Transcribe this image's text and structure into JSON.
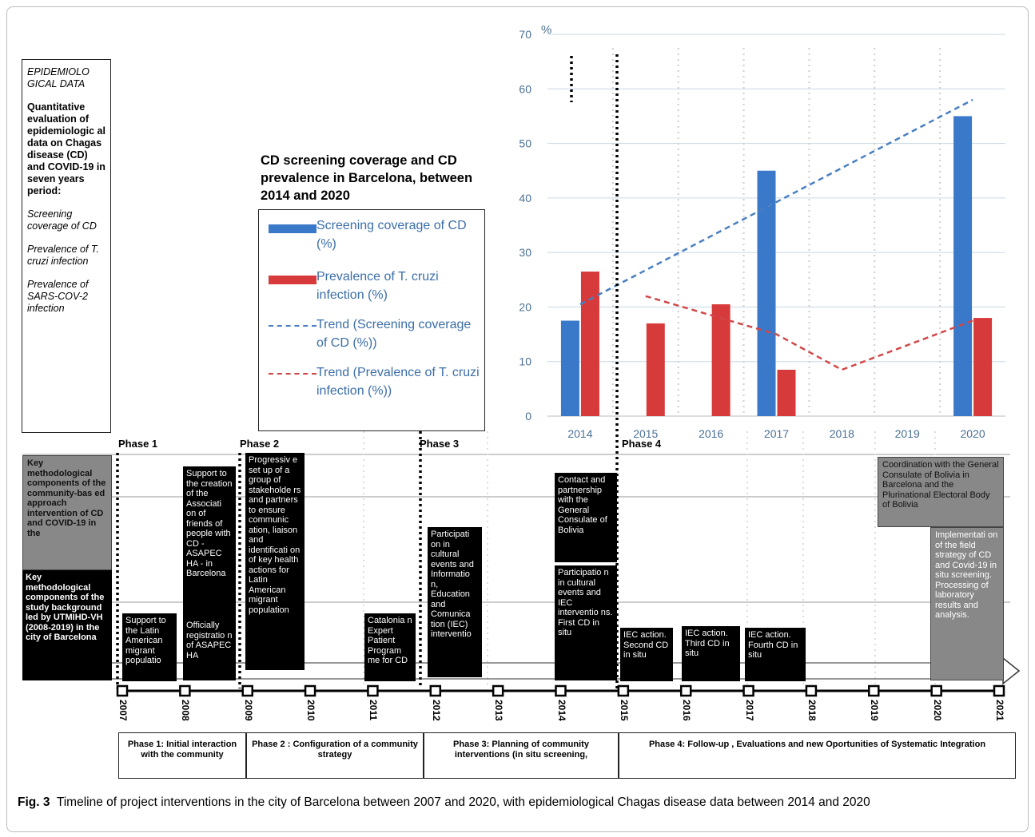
{
  "epi": {
    "header": "EPIDEMIOLO GICAL DATA",
    "bold": "Quantitative evaluation of epidemiologic al data on Chagas disease (CD) and COVID-19 in seven years period:",
    "items": [
      "Screening coverage of CD",
      "Prevalence of T. cruzi infection",
      "Prevalence of SARS-COV-2 infection"
    ]
  },
  "chart_title": "CD screening coverage and CD prevalence in Barcelona, between 2014 and 2020",
  "legend": {
    "s1": "Screening coverage of CD (%)",
    "s2": "Prevalence of T. cruzi infection (%)",
    "s3": "Trend (Screening coverage of CD (%))",
    "s4": "Trend (Prevalence of T. cruzi infection (%))"
  },
  "chart_data": {
    "type": "bar",
    "categories": [
      "2014",
      "2015",
      "2016",
      "2017",
      "2018",
      "2019",
      "2020"
    ],
    "ylim": [
      0,
      70
    ],
    "yticks": [
      0,
      10,
      20,
      30,
      40,
      50,
      60,
      70
    ],
    "yunit": "%",
    "series": [
      {
        "name": "Screening coverage of CD (%)",
        "color": "#3a78c9",
        "values": [
          17.5,
          null,
          null,
          45,
          null,
          null,
          55
        ]
      },
      {
        "name": "Prevalence of T. cruzi infection (%)",
        "color": "#d63a3a",
        "values": [
          26.5,
          17,
          20.5,
          8.5,
          null,
          null,
          18
        ]
      }
    ],
    "trends": [
      {
        "name": "Trend (Screening coverage of CD (%))",
        "color": "#4a7fc0",
        "points": [
          [
            "2014",
            20.5
          ],
          [
            "2020",
            58
          ]
        ]
      },
      {
        "name": "Trend (Prevalence of T. cruzi infection (%))",
        "color": "#d04848",
        "points": [
          [
            "2015",
            22
          ],
          [
            "2017",
            15
          ],
          [
            "2018",
            8.5
          ],
          [
            "2020",
            17.5
          ]
        ]
      }
    ]
  },
  "phases": [
    "Phase 1",
    "Phase 2",
    "Phase 3",
    "Phase 4"
  ],
  "rows": {
    "row1": "Key methodological components of the community-bas ed approach intervention of CD and COVID-19 in the",
    "row2": "Key methodological components of the study background led by UTMIHD-VH (2008-2019) in the city of Barcelona"
  },
  "boxes": {
    "b1": "Support to the Latin American migrant populatio",
    "b2": "Support to the creation of the Associati on of friends of people with CD - ASAPEC HA - in Barcelona",
    "b2b": "Officially registratio n of ASAPEC HA",
    "b3": "Progressiv e set up of a group of stakeholde rs and partners to ensure communic ation, liaison and identificati on of key health actions for Latin American migrant population",
    "b4": "Catalonia n Expert Patient Program me for CD",
    "b5": "Participati on in cultural events and Informatio n, Education and Comunica tion (IEC) interventio",
    "b6": "Contact and partnership with the General Consulate of Bolivia",
    "b7": "Participatio n in cultural events and IEC interventio ns. First CD in situ",
    "b8": "IEC action. Second CD in situ",
    "b9": "IEC action. Third CD in situ",
    "b10": "IEC action. Fourth CD in situ",
    "b11": "Coordination with the General Consulate of Bolivia in Barcelona and the Plurinational Electoral Body of Bolivia",
    "b12": "Implementati on of the field strategy of CD and Covid-19 in situ screening. Processing of laboratory results and analysis."
  },
  "years": [
    "2007",
    "2008",
    "2009",
    "2010",
    "2011",
    "2012",
    "2013",
    "2014",
    "2015",
    "2016",
    "2017",
    "2018",
    "2019",
    "2020",
    "2021"
  ],
  "phase_boxes": [
    "Phase 1: Initial interaction with the community",
    "Phase 2 : Configuration of a community strategy",
    "Phase 3: Planning of community interventions (in situ screening,",
    "Phase 4: Follow-up , Evaluations and new Oportunities of Systematic Integration"
  ],
  "caption": {
    "label": "Fig. 3",
    "text": "Timeline of project interventions in the city of Barcelona between 2007 and 2020, with epidemiological Chagas disease data between 2014 and 2020"
  }
}
